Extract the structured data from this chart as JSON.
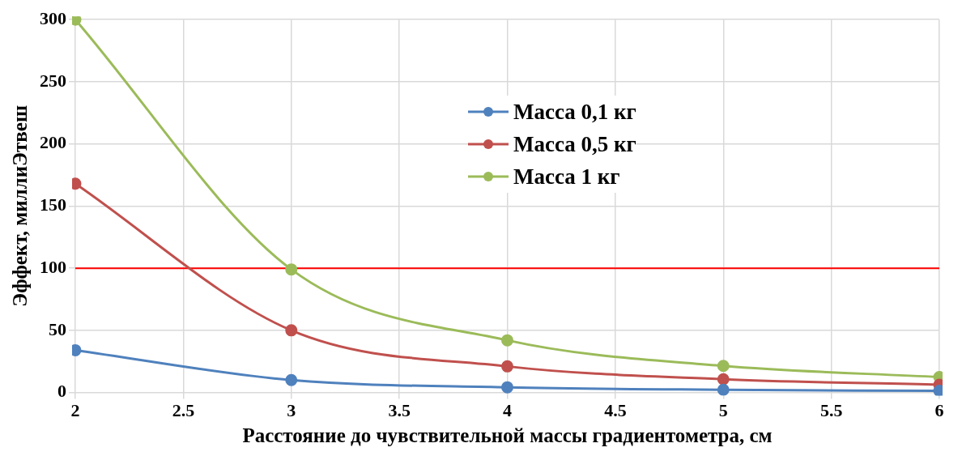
{
  "chart_data": {
    "type": "line",
    "xlabel": "Расстояние до чувствительной массы градиентометра, см",
    "ylabel": "Эффект, миллиЭтвеш",
    "x": [
      2,
      3,
      4,
      5,
      6
    ],
    "series": [
      {
        "name": "Масса 0,1 кг",
        "color": "#4f81bd",
        "values": [
          34,
          10,
          4.2,
          2.2,
          1.3
        ]
      },
      {
        "name": "Масса 0,5 кг",
        "color": "#c0504d",
        "values": [
          168,
          50,
          21,
          10.7,
          6.2
        ]
      },
      {
        "name": "Масса 1 кг",
        "color": "#9bbb59",
        "values": [
          300,
          99,
          42,
          21.4,
          12.4
        ]
      }
    ],
    "xlim": [
      2,
      6
    ],
    "xticks": [
      2,
      2.5,
      3,
      3.5,
      4,
      4.5,
      5,
      5.5,
      6
    ],
    "ylim": [
      0,
      300
    ],
    "yticks": [
      0,
      50,
      100,
      150,
      200,
      250,
      300
    ],
    "ref_lines": [
      {
        "axis": "y",
        "value": 100,
        "color": "#ff0000"
      }
    ],
    "grid": true,
    "legend": "top",
    "marker": "circle",
    "line_style": "solid"
  }
}
